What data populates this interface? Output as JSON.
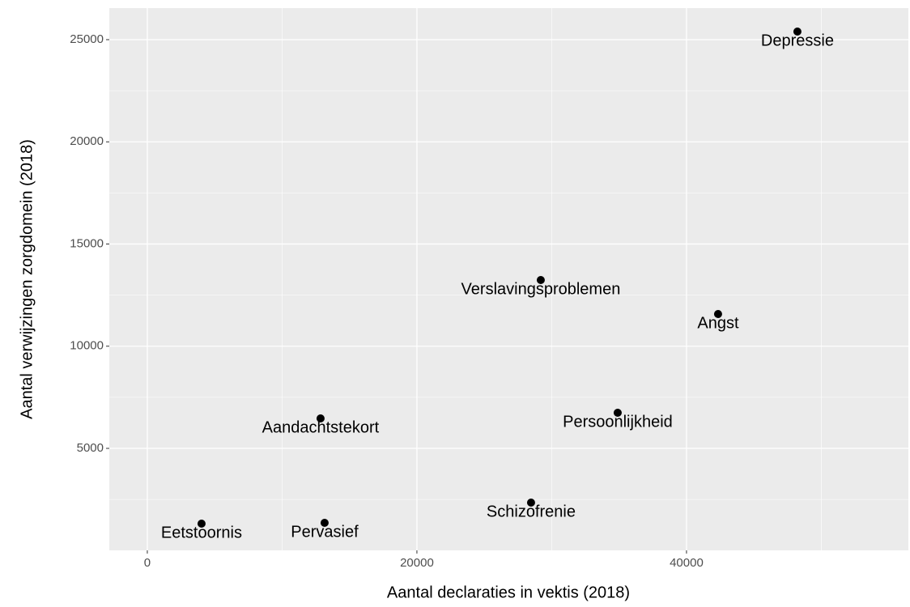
{
  "chart_data": {
    "type": "scatter",
    "x_label": "Aantal declaraties in vektis (2018)",
    "y_label": "Aantal verwijzingen zorgdomein (2018)",
    "point_labels": [
      "Depressie",
      "Verslavingsproblemen",
      "Angst",
      "Persoonlijkheid",
      "Aandachtstekort",
      "Schizofrenie",
      "Eetstoornis",
      "Pervasief"
    ],
    "x": [
      48228,
      29189,
      42342,
      34895,
      12853,
      28468,
      4024,
      13153
    ],
    "values": [
      25396,
      13238,
      11574,
      6743,
      6465,
      2347,
      1317,
      1356
    ],
    "color": "#000000",
    "xlim": [
      -2820,
      56460
    ],
    "ylim": [
      10,
      26545
    ],
    "xticks": [
      0,
      20000,
      40000
    ],
    "yticks": [
      5000,
      10000,
      15000,
      20000,
      25000
    ],
    "x_minor_ticks": [
      10000,
      30000,
      50000
    ],
    "y_minor_ticks": [
      2500,
      7500,
      12500,
      17500,
      22500
    ],
    "grid": true
  }
}
